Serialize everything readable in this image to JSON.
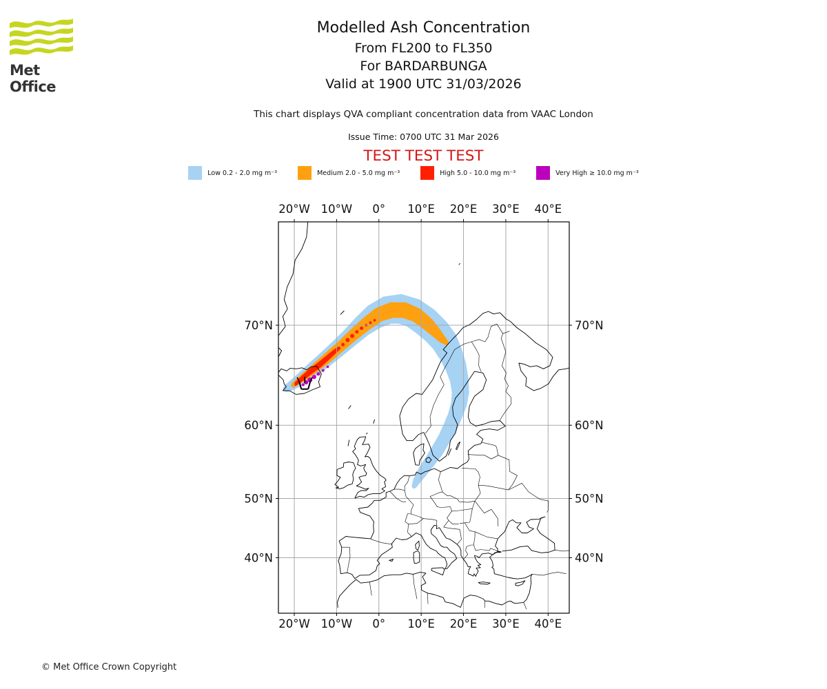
{
  "header": {
    "logo_text": "Met Office",
    "title": "Modelled Ash Concentration",
    "subtitle1": "From FL200 to FL350",
    "subtitle2": "For BARDARBUNGA",
    "subtitle3": "Valid at 1900 UTC 31/03/2026",
    "note": "This chart displays QVA compliant concentration data from VAAC London",
    "issue_time": "Issue Time: 0700 UTC 31 Mar 2026",
    "test_banner": "TEST TEST TEST"
  },
  "footer": {
    "copyright": "© Met Office Crown Copyright"
  },
  "colors": {
    "low": "#A6D2F4",
    "medium": "#FFA010",
    "high": "#FF2000",
    "very_high": "#BC00BC",
    "test_banner": "#D41717",
    "grid": "#A8A8A8",
    "coast": "#000000",
    "logo_green": "#C6D620"
  },
  "legend": {
    "items": [
      {
        "key": "low",
        "color_key": "low",
        "label": "Low 0.2 - 2.0 mg m⁻³"
      },
      {
        "key": "medium",
        "color_key": "medium",
        "label": "Medium 2.0 - 5.0 mg m⁻³"
      },
      {
        "key": "high",
        "color_key": "high",
        "label": "High 5.0 - 10.0 mg m⁻³"
      },
      {
        "key": "very-high",
        "color_key": "very_high",
        "label": "Very High ≥ 10.0 mg m⁻³"
      }
    ]
  },
  "chart_data": {
    "type": "map",
    "projection": "mercator",
    "lon_range": [
      -23.75,
      45.0
    ],
    "lat_range": [
      29.5,
      76.9
    ],
    "lon_ticks": [
      "20°W",
      "10°W",
      "0°",
      "10°E",
      "20°E",
      "30°E",
      "40°E"
    ],
    "lon_tick_values": [
      -20,
      -10,
      0,
      10,
      20,
      30,
      40
    ],
    "lat_ticks": [
      "70°N",
      "60°N",
      "50°N",
      "40°N"
    ],
    "lat_tick_values": [
      70,
      60,
      50,
      40
    ],
    "grid": true,
    "volcano": {
      "name": "BARDARBUNGA",
      "lon": -17.53,
      "lat": 64.63
    },
    "plume_bands": [
      {
        "level": "low",
        "points": [
          [
            -21.8,
            64.1,
            5
          ],
          [
            -19.0,
            64.9,
            8
          ],
          [
            -16.0,
            65.9,
            10
          ],
          [
            -13.0,
            66.9,
            11
          ],
          [
            -10.0,
            67.9,
            12
          ],
          [
            -7.0,
            68.9,
            13
          ],
          [
            -4.0,
            69.9,
            15
          ],
          [
            -1.0,
            70.7,
            18
          ],
          [
            2.0,
            71.2,
            20
          ],
          [
            5.0,
            71.3,
            21
          ],
          [
            8.0,
            71.0,
            21
          ],
          [
            11.0,
            70.3,
            21
          ],
          [
            13.5,
            69.5,
            20
          ],
          [
            15.5,
            68.6,
            19
          ],
          [
            17.0,
            67.5,
            17
          ],
          [
            18.2,
            66.3,
            15
          ],
          [
            19.0,
            65.0,
            13
          ],
          [
            19.3,
            63.7,
            12
          ],
          [
            18.9,
            62.4,
            11
          ],
          [
            18.0,
            61.1,
            10
          ],
          [
            16.9,
            59.8,
            10
          ],
          [
            15.5,
            58.4,
            9
          ],
          [
            13.9,
            56.9,
            9
          ],
          [
            12.1,
            55.4,
            8
          ],
          [
            10.4,
            54.0,
            7
          ],
          [
            8.9,
            52.6,
            5
          ],
          [
            8.3,
            51.8,
            3
          ]
        ]
      },
      {
        "level": "medium",
        "points": [
          [
            -20.3,
            64.45,
            3
          ],
          [
            -18.0,
            65.2,
            5
          ],
          [
            -15.0,
            66.2,
            6
          ],
          [
            -12.0,
            67.2,
            7
          ],
          [
            -9.0,
            68.2,
            7
          ],
          [
            -6.0,
            69.2,
            8
          ],
          [
            -3.0,
            70.1,
            9
          ],
          [
            0.0,
            70.85,
            10
          ],
          [
            3.0,
            71.2,
            11
          ],
          [
            6.0,
            71.2,
            11
          ],
          [
            9.0,
            70.8,
            10
          ],
          [
            11.5,
            70.1,
            9
          ],
          [
            13.5,
            69.4,
            7
          ],
          [
            15.0,
            68.8,
            5
          ],
          [
            16.0,
            68.5,
            3
          ]
        ]
      },
      {
        "level": "high",
        "points": [
          [
            -19.8,
            64.55,
            2
          ],
          [
            -18.0,
            65.2,
            3
          ],
          [
            -16.0,
            65.9,
            3.5
          ],
          [
            -14.0,
            66.5,
            3.5
          ],
          [
            -12.0,
            67.2,
            3
          ],
          [
            -10.5,
            67.7,
            2.5
          ],
          [
            -9.4,
            68.05,
            2
          ]
        ]
      }
    ],
    "high_dots": [
      [
        -8.5,
        68.35,
        2.5
      ],
      [
        -7.4,
        68.75,
        3
      ],
      [
        -6.3,
        69.1,
        3
      ],
      [
        -5.2,
        69.45,
        2.5
      ],
      [
        -4.1,
        69.75,
        2.5
      ],
      [
        -3.0,
        70.0,
        2
      ],
      [
        -2.0,
        70.2,
        2
      ],
      [
        -1.0,
        70.4,
        1.8
      ]
    ],
    "very_high_dots": [
      [
        -17.9,
        64.5,
        2
      ],
      [
        -17.2,
        64.75,
        3
      ],
      [
        -16.3,
        65.0,
        3.5
      ],
      [
        -15.3,
        65.3,
        3
      ],
      [
        -14.3,
        65.6,
        2.5
      ],
      [
        -13.2,
        65.95,
        2
      ],
      [
        -12.1,
        66.3,
        1.8
      ]
    ]
  }
}
